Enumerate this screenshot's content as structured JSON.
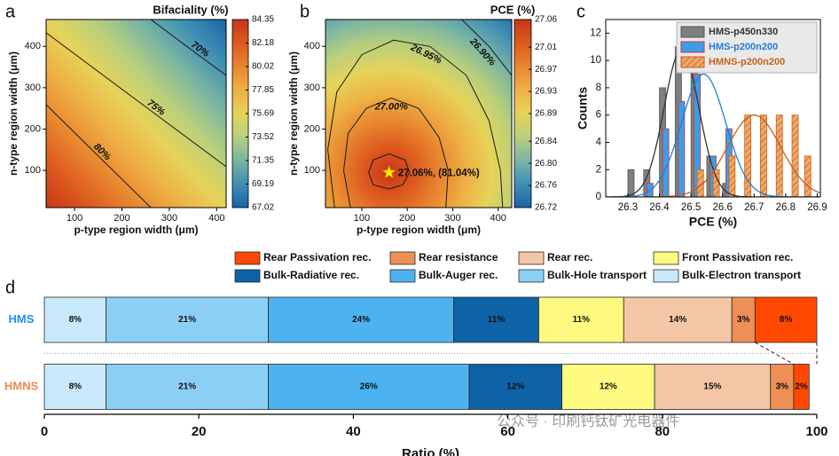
{
  "chart_data": [
    {
      "type": "contour",
      "panel": "a",
      "title": "Bifaciality (%)",
      "x_label": "p-type region width (μm)",
      "y_label": "n-type region width (μm)",
      "xlim": [
        40,
        420
      ],
      "ylim": [
        10,
        465
      ],
      "xticks": [
        100,
        200,
        300,
        400
      ],
      "yticks": [
        100,
        200,
        300,
        400
      ],
      "clim": [
        67.02,
        84.35
      ],
      "cticks": [
        84.35,
        82.18,
        80.02,
        77.85,
        75.69,
        73.52,
        71.35,
        69.19,
        67.02
      ],
      "colormap": [
        "#1a63a6",
        "#3f8fb5",
        "#7ab5a3",
        "#b8cf7c",
        "#e6d35a",
        "#eeb044",
        "#e8862f",
        "#dc5a1e",
        "#c8351a"
      ],
      "contours": [
        {
          "label": "70%",
          "x": [
            261,
            358,
            420
          ],
          "y": [
            465,
            382,
            330
          ]
        },
        {
          "label": "75%",
          "x": [
            40,
            265,
            420
          ],
          "y": [
            433,
            241,
            109
          ]
        },
        {
          "label": "80%",
          "x": [
            40,
            150,
            261
          ],
          "y": [
            259,
            135,
            10
          ]
        }
      ]
    },
    {
      "type": "contour",
      "panel": "b",
      "title": "PCE (%)",
      "x_label": "p-type region width (μm)",
      "y_label": "n-type region width (μm)",
      "xlim": [
        20,
        430
      ],
      "ylim": [
        10,
        465
      ],
      "xticks": [
        100,
        200,
        300,
        400
      ],
      "yticks": [
        100,
        200,
        300,
        400
      ],
      "clim": [
        26.72,
        27.06
      ],
      "cticks": [
        27.06,
        27.01,
        26.97,
        26.93,
        26.89,
        26.84,
        {
          "value": 26.8,
          "label": "26.80"
        },
        26.76,
        26.72
      ],
      "colormap": [
        "#1a63a6",
        "#3f8fb5",
        "#7ab5a3",
        "#b8cf7c",
        "#e6d35a",
        "#eeb044",
        "#e8862f",
        "#dc5a1e",
        "#c8351a"
      ],
      "contours": [
        {
          "x": [
            115,
            125,
            160,
            195,
            205,
            190,
            160,
            125,
            115
          ],
          "y": [
            95,
            125,
            140,
            125,
            95,
            65,
            55,
            65,
            95
          ]
        },
        {
          "label": "27.00%",
          "x": [
            75,
            60,
            70,
            110,
            165,
            225,
            270,
            290,
            285
          ],
          "y": [
            10,
            100,
            190,
            250,
            275,
            250,
            180,
            100,
            10
          ]
        },
        {
          "label": "26.95%",
          "x": [
            40,
            25,
            45,
            100,
            170,
            250,
            330,
            380,
            405,
            410
          ],
          "y": [
            10,
            150,
            290,
            380,
            415,
            400,
            330,
            220,
            100,
            10
          ]
        },
        {
          "label": "26.90%",
          "x": [
            320,
            380,
            430
          ],
          "y": [
            465,
            400,
            330
          ]
        }
      ],
      "optimum": {
        "x": 160,
        "y": 95,
        "label": "27.06%, (81.04%)"
      }
    },
    {
      "type": "bar",
      "panel": "c",
      "x_label": "PCE (%)",
      "y_label": "Counts",
      "xlim": [
        26.23,
        26.91
      ],
      "ylim": [
        0,
        13
      ],
      "xticks": [
        26.3,
        26.4,
        26.5,
        26.6,
        26.7,
        26.8,
        26.9
      ],
      "yticks": [
        0,
        2,
        4,
        6,
        8,
        10,
        12
      ],
      "legend": "upper right",
      "series": [
        {
          "name": "HMS-p450n330",
          "color": "#7f7f7f",
          "edgecolor": "#555555",
          "x": [
            26.31,
            26.36,
            26.41,
            26.46,
            26.51,
            26.56,
            26.61
          ],
          "values": [
            2,
            2,
            8,
            11,
            11,
            3,
            1
          ],
          "fit": {
            "mean": 26.47,
            "sd": 0.055,
            "peak": 10.8,
            "color": "#333333"
          }
        },
        {
          "name": "HMS-p200n200",
          "color": "#3a9ee8",
          "edgecolor": "#e03030",
          "x": [
            26.37,
            26.42,
            26.47,
            26.52,
            26.57,
            26.62
          ],
          "values": [
            1,
            5,
            7,
            9,
            3,
            5
          ],
          "fit": {
            "mean": 26.54,
            "sd": 0.07,
            "peak": 9,
            "color": "#1f7fd6"
          }
        },
        {
          "name": "HMNS-p200n200",
          "color": "#f0a868",
          "edgecolor": "#c8601a",
          "hatch": true,
          "x": [
            26.53,
            26.58,
            26.63,
            26.68,
            26.73,
            26.78,
            26.83,
            26.87
          ],
          "values": [
            2,
            2,
            3,
            6,
            6,
            6,
            6,
            3
          ],
          "fit": {
            "mean": 26.7,
            "sd": 0.085,
            "peak": 6,
            "color": "#c8601a"
          }
        }
      ]
    },
    {
      "type": "stacked-barh",
      "panel": "d",
      "x_label": "Ratio (%)",
      "categories": [
        "HMS",
        "HMNS"
      ],
      "category_colors": [
        "#1e90ff",
        "#ee8a4a"
      ],
      "xlim": [
        0,
        100
      ],
      "xticks": [
        0,
        20,
        40,
        60,
        80,
        100
      ],
      "series": [
        {
          "name": "Bulk-Electron transport",
          "color": "#c8e8fb",
          "values": [
            8,
            8
          ],
          "value_labels": [
            "8%",
            "8%"
          ]
        },
        {
          "name": "Bulk-Hole transport",
          "color": "#8ccff5",
          "values": [
            21,
            21
          ],
          "value_labels": [
            "21%",
            "21%"
          ]
        },
        {
          "name": "Bulk-Auger rec.",
          "color": "#4db3f0",
          "values": [
            24,
            26
          ],
          "value_labels": [
            "24%",
            "26%"
          ]
        },
        {
          "name": "Bulk-Radiative rec.",
          "color": "#0e62a6",
          "values": [
            11,
            12
          ],
          "value_labels": [
            "11%",
            "12%"
          ]
        },
        {
          "name": "Front Passivation rec.",
          "color": "#fffb80",
          "values": [
            11,
            12
          ],
          "value_labels": [
            "11%",
            "12%"
          ]
        },
        {
          "name": "Rear rec.",
          "color": "#f5c6a5",
          "values": [
            14,
            15
          ],
          "value_labels": [
            "14%",
            "15%"
          ]
        },
        {
          "name": "Rear resistance",
          "color": "#ee8f55",
          "values": [
            3,
            3
          ],
          "value_labels": [
            "3%",
            "3%"
          ]
        },
        {
          "name": "Rear Passivation rec.",
          "color": "#ff4800",
          "values": [
            8,
            2
          ],
          "value_labels": [
            "8%",
            "2%"
          ]
        }
      ]
    }
  ],
  "watermark": "公众号 · 印刷钙钛矿光电器件"
}
